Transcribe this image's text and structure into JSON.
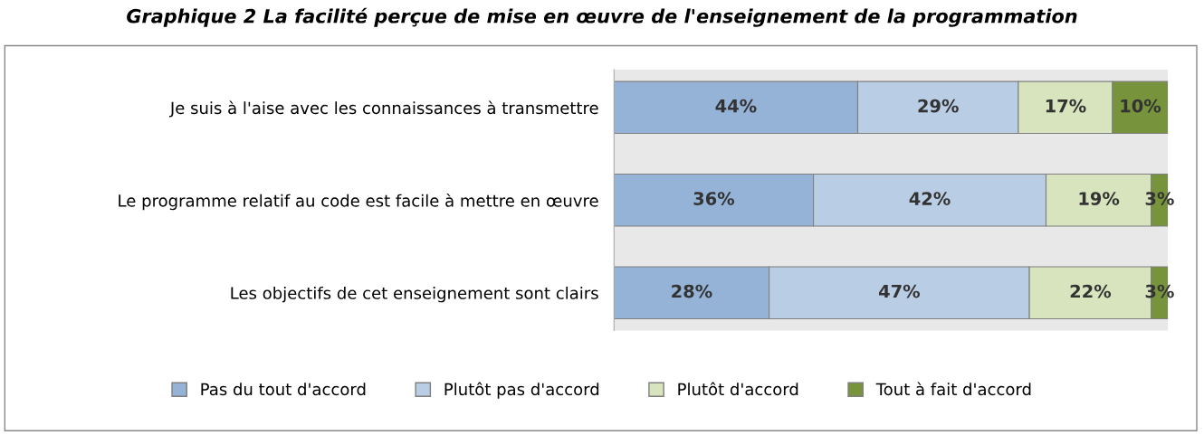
{
  "chart_data": {
    "type": "bar",
    "orientation": "horizontal",
    "stacked": true,
    "title": "Graphique 2 La facilité perçue de mise en œuvre de l'enseignement de la programmation",
    "categories": [
      "Je suis à l'aise avec les connaissances à transmettre",
      "Le programme relatif au code est facile à mettre en œuvre",
      "Les objectifs de cet enseignement sont clairs"
    ],
    "series": [
      {
        "name": "Pas du tout d'accord",
        "color": "#95b3d7",
        "values": [
          44,
          36,
          28
        ],
        "value_labels": [
          "44%",
          "36%",
          "28%"
        ]
      },
      {
        "name": "Plutôt pas d'accord",
        "color": "#b9cde5",
        "values": [
          29,
          42,
          47
        ],
        "value_labels": [
          "29%",
          "42%",
          "47%"
        ]
      },
      {
        "name": "Plutôt d'accord",
        "color": "#d7e4bd",
        "values": [
          17,
          19,
          22
        ],
        "value_labels": [
          "17%",
          "19%",
          "22%"
        ]
      },
      {
        "name": "Tout à fait d'accord",
        "color": "#77933c",
        "values": [
          10,
          3,
          3
        ],
        "value_labels": [
          "10%",
          "3%",
          "3%"
        ]
      }
    ],
    "legend": "bottom",
    "grid": false,
    "tick_labels": "y"
  }
}
